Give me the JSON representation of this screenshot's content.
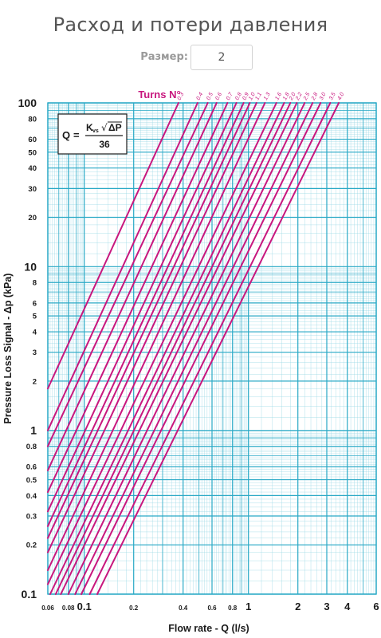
{
  "page": {
    "title": "Расход и потери давления",
    "size_label": "Размер:",
    "size_value": "2"
  },
  "colors": {
    "grid_major": "#29a9c6",
    "grid_minor": "#9ad8e6",
    "curve": "#c8177e",
    "text": "#1a1a1a"
  },
  "chart_data": {
    "type": "line",
    "title": "",
    "legend_title": "Turns N°",
    "xlabel": "Flow rate - Q (l/s)",
    "ylabel": "Pressure Loss Signal  - Δp (kPa)",
    "xscale": "log",
    "yscale": "log",
    "xlim": [
      0.06,
      6
    ],
    "ylim": [
      0.1,
      100
    ],
    "grid": true,
    "x_ticks": [
      {
        "value": 0.06,
        "label": "0.06"
      },
      {
        "value": 0.08,
        "label": "0.08"
      },
      {
        "value": 0.1,
        "label": "0.1"
      },
      {
        "value": 0.2,
        "label": "0.2"
      },
      {
        "value": 0.4,
        "label": "0.4"
      },
      {
        "value": 0.6,
        "label": "0.6"
      },
      {
        "value": 0.8,
        "label": "0.8"
      },
      {
        "value": 1,
        "label": "1"
      },
      {
        "value": 2,
        "label": "2"
      },
      {
        "value": 3,
        "label": "3"
      },
      {
        "value": 4,
        "label": "4"
      },
      {
        "value": 6,
        "label": "6"
      }
    ],
    "y_ticks": [
      {
        "value": 100,
        "label": "100"
      },
      {
        "value": 80,
        "label": "80"
      },
      {
        "value": 60,
        "label": "60"
      },
      {
        "value": 50,
        "label": "50"
      },
      {
        "value": 40,
        "label": "40"
      },
      {
        "value": 30,
        "label": "30"
      },
      {
        "value": 20,
        "label": "20"
      },
      {
        "value": 10,
        "label": "10"
      },
      {
        "value": 8,
        "label": "8"
      },
      {
        "value": 6,
        "label": "6"
      },
      {
        "value": 5,
        "label": "5"
      },
      {
        "value": 4,
        "label": "4"
      },
      {
        "value": 3,
        "label": "3"
      },
      {
        "value": 2,
        "label": "2"
      },
      {
        "value": 1,
        "label": "1"
      },
      {
        "value": 0.8,
        "label": "0.8"
      },
      {
        "value": 0.6,
        "label": "0.6"
      },
      {
        "value": 0.5,
        "label": "0.5"
      },
      {
        "value": 0.4,
        "label": "0.4"
      },
      {
        "value": 0.3,
        "label": "0.3"
      },
      {
        "value": 0.2,
        "label": "0.2"
      },
      {
        "value": 0.1,
        "label": "0.1"
      }
    ],
    "formula": {
      "lhs": "Q",
      "eq": "=",
      "numerator_k": "K",
      "numerator_sub": "vs",
      "numerator_sqrt": "√",
      "numerator_arg": "ΔP",
      "denominator": "36"
    },
    "series": [
      {
        "name": "0.3",
        "points": [
          [
            0.06,
            1.8
          ],
          [
            0.375,
            100
          ]
        ]
      },
      {
        "name": "0.4",
        "points": [
          [
            0.06,
            1.0
          ],
          [
            0.49,
            100
          ]
        ]
      },
      {
        "name": "0.5",
        "points": [
          [
            0.06,
            0.8
          ],
          [
            0.565,
            100
          ]
        ]
      },
      {
        "name": "0.6",
        "points": [
          [
            0.06,
            0.57
          ],
          [
            0.64,
            100
          ]
        ]
      },
      {
        "name": "0.7",
        "points": [
          [
            0.06,
            0.42
          ],
          [
            0.745,
            100
          ]
        ]
      },
      {
        "name": "0.8",
        "points": [
          [
            0.06,
            0.32
          ],
          [
            0.845,
            100
          ]
        ]
      },
      {
        "name": "0.9",
        "points": [
          [
            0.06,
            0.26
          ],
          [
            0.935,
            100
          ]
        ]
      },
      {
        "name": "1.0",
        "points": [
          [
            0.06,
            0.22
          ],
          [
            1.02,
            100
          ]
        ]
      },
      {
        "name": "1.1",
        "points": [
          [
            0.06,
            0.18
          ],
          [
            1.12,
            100
          ]
        ]
      },
      {
        "name": "1.3",
        "points": [
          [
            0.06,
            0.14
          ],
          [
            1.26,
            100
          ]
        ]
      },
      {
        "name": "1.6",
        "points": [
          [
            0.06,
            0.115
          ],
          [
            1.48,
            100
          ]
        ]
      },
      {
        "name": "1.8",
        "points": [
          [
            0.062,
            0.1
          ],
          [
            1.65,
            100
          ]
        ]
      },
      {
        "name": "2.0",
        "points": [
          [
            0.067,
            0.1
          ],
          [
            1.8,
            100
          ]
        ]
      },
      {
        "name": "2.2",
        "points": [
          [
            0.072,
            0.1
          ],
          [
            1.97,
            100
          ]
        ]
      },
      {
        "name": "2.5",
        "points": [
          [
            0.08,
            0.1
          ],
          [
            2.2,
            100
          ]
        ]
      },
      {
        "name": "2.8",
        "points": [
          [
            0.088,
            0.1
          ],
          [
            2.46,
            100
          ]
        ]
      },
      {
        "name": "3.0",
        "points": [
          [
            0.096,
            0.1
          ],
          [
            2.75,
            100
          ]
        ]
      },
      {
        "name": "3.5",
        "points": [
          [
            0.108,
            0.1
          ],
          [
            3.15,
            100
          ]
        ]
      },
      {
        "name": "4.0",
        "points": [
          [
            0.12,
            0.1
          ],
          [
            3.55,
            100
          ]
        ]
      }
    ]
  }
}
